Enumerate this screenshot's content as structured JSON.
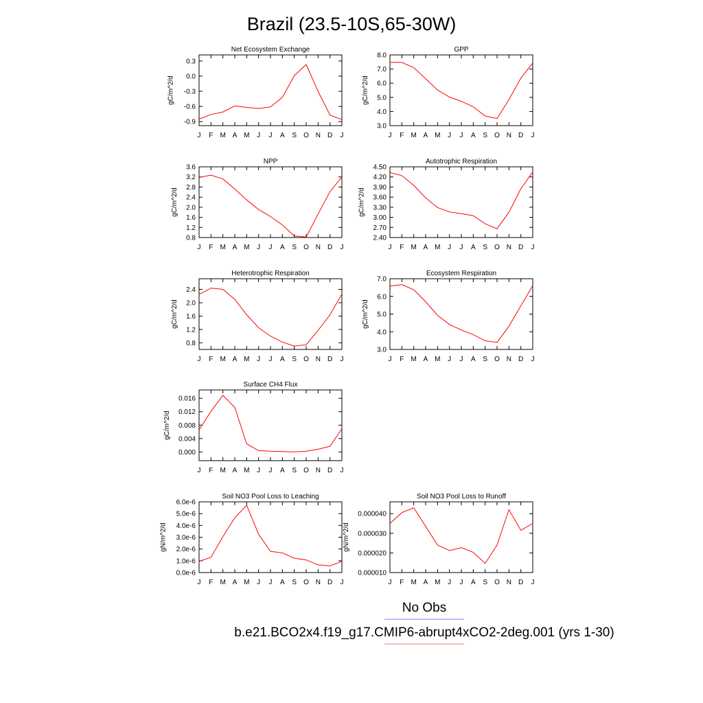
{
  "title": "Brazil (23.5-10S,65-30W)",
  "legend": {
    "entries": [
      {
        "label": "No Obs",
        "color": "#7b7bff"
      },
      {
        "label": "b.e21.BCO2x4.f19_g17.CMIP6-abrupt4xCO2-2deg.001 (yrs 1-30)",
        "color": "#ff6f6f"
      }
    ]
  },
  "colors": {
    "series": "#ff0000",
    "axis": "#000000"
  },
  "chart_data": [
    {
      "type": "line",
      "title": "Net Ecosystem Exchange",
      "ylabel": "gC/m^2/d",
      "categories": [
        "J",
        "F",
        "M",
        "A",
        "M",
        "J",
        "J",
        "A",
        "S",
        "O",
        "N",
        "D",
        "J"
      ],
      "values": [
        -0.85,
        -0.76,
        -0.71,
        -0.59,
        -0.62,
        -0.64,
        -0.61,
        -0.42,
        0.01,
        0.23,
        -0.3,
        -0.77,
        -0.86
      ],
      "ylim": [
        -0.98,
        0.42
      ],
      "yticks": [
        0.3,
        0.0,
        -0.3,
        -0.6,
        -0.9
      ],
      "ytick_labels": [
        "0.3",
        "0.0",
        "-0.3",
        "-0.6",
        "-0.9"
      ]
    },
    {
      "type": "line",
      "title": "GPP",
      "ylabel": "gC/m^2/d",
      "categories": [
        "J",
        "F",
        "M",
        "A",
        "M",
        "J",
        "J",
        "A",
        "S",
        "O",
        "N",
        "D",
        "J"
      ],
      "values": [
        7.48,
        7.47,
        7.1,
        6.32,
        5.52,
        5.02,
        4.72,
        4.33,
        3.68,
        3.5,
        4.84,
        6.36,
        7.43
      ],
      "ylim": [
        3.0,
        8.0
      ],
      "yticks": [
        8.0,
        7.0,
        6.0,
        5.0,
        4.0,
        3.0
      ],
      "ytick_labels": [
        "8.0",
        "7.0",
        "6.0",
        "5.0",
        "4.0",
        "3.0"
      ]
    },
    {
      "type": "line",
      "title": "NPP",
      "ylabel": "gC/m^2/d",
      "categories": [
        "J",
        "F",
        "M",
        "A",
        "M",
        "J",
        "J",
        "A",
        "S",
        "O",
        "N",
        "D",
        "J"
      ],
      "values": [
        3.18,
        3.27,
        3.12,
        2.72,
        2.29,
        1.91,
        1.63,
        1.3,
        0.86,
        0.82,
        1.73,
        2.62,
        3.2
      ],
      "ylim": [
        0.8,
        3.6
      ],
      "yticks": [
        3.6,
        3.2,
        2.8,
        2.4,
        2.0,
        1.6,
        1.2,
        0.8
      ],
      "ytick_labels": [
        "3.6",
        "3.2",
        "2.8",
        "2.4",
        "2.0",
        "1.6",
        "1.2",
        "0.8"
      ]
    },
    {
      "type": "line",
      "title": "Autotrophic Respiration",
      "ylabel": "gC/m^2/d",
      "categories": [
        "J",
        "F",
        "M",
        "A",
        "M",
        "J",
        "J",
        "A",
        "S",
        "O",
        "N",
        "D",
        "J"
      ],
      "values": [
        4.33,
        4.24,
        3.95,
        3.58,
        3.29,
        3.16,
        3.11,
        3.05,
        2.81,
        2.66,
        3.15,
        3.85,
        4.35
      ],
      "ylim": [
        2.4,
        4.5
      ],
      "yticks": [
        4.5,
        4.2,
        3.9,
        3.6,
        3.3,
        3.0,
        2.7,
        2.4
      ],
      "ytick_labels": [
        "4.50",
        "4.20",
        "3.90",
        "3.60",
        "3.30",
        "3.00",
        "2.70",
        "2.40"
      ]
    },
    {
      "type": "line",
      "title": "Heterotrophic Respiration",
      "ylabel": "gC/m^2/d",
      "categories": [
        "J",
        "F",
        "M",
        "A",
        "M",
        "J",
        "J",
        "A",
        "S",
        "O",
        "N",
        "D",
        "J"
      ],
      "values": [
        2.25,
        2.44,
        2.4,
        2.1,
        1.64,
        1.25,
        1.0,
        0.82,
        0.7,
        0.74,
        1.17,
        1.64,
        2.26
      ],
      "ylim": [
        0.6,
        2.72
      ],
      "yticks": [
        2.4,
        2.0,
        1.6,
        1.2,
        0.8
      ],
      "ytick_labels": [
        "2.4",
        "2.0",
        "1.6",
        "1.2",
        "0.8"
      ]
    },
    {
      "type": "line",
      "title": "Ecosystem Respiration",
      "ylabel": "gC/m^2/d",
      "categories": [
        "J",
        "F",
        "M",
        "A",
        "M",
        "J",
        "J",
        "A",
        "S",
        "O",
        "N",
        "D",
        "J"
      ],
      "values": [
        6.58,
        6.67,
        6.38,
        5.7,
        4.93,
        4.41,
        4.1,
        3.84,
        3.49,
        3.4,
        4.31,
        5.47,
        6.61
      ],
      "ylim": [
        3.0,
        7.0
      ],
      "yticks": [
        7.0,
        6.0,
        5.0,
        4.0,
        3.0
      ],
      "ytick_labels": [
        "7.0",
        "6.0",
        "5.0",
        "4.0",
        "3.0"
      ]
    },
    {
      "type": "line",
      "title": "Surface CH4 Flux",
      "ylabel": "gC/m^2/d",
      "categories": [
        "J",
        "F",
        "M",
        "A",
        "M",
        "J",
        "J",
        "A",
        "S",
        "O",
        "N",
        "D",
        "J"
      ],
      "values": [
        0.0066,
        0.0121,
        0.0169,
        0.0133,
        0.0024,
        0.0004,
        0.0002,
        0.0001,
        0.0,
        0.0002,
        0.0008,
        0.0017,
        0.0069
      ],
      "ylim": [
        -0.0026,
        0.0185
      ],
      "yticks": [
        0.016,
        0.012,
        0.008,
        0.004,
        0.0
      ],
      "ytick_labels": [
        "0.016",
        "0.012",
        "0.008",
        "0.004",
        "0.000"
      ]
    },
    {
      "type": "line",
      "title": "Soil NO3 Pool Loss to Leaching",
      "ylabel": "gN/m^2/d",
      "categories": [
        "J",
        "F",
        "M",
        "A",
        "M",
        "J",
        "J",
        "A",
        "S",
        "O",
        "N",
        "D",
        "J"
      ],
      "values": [
        9.5e-07,
        1.3e-06,
        3.05e-06,
        4.65e-06,
        5.7e-06,
        3.25e-06,
        1.8e-06,
        1.67e-06,
        1.22e-06,
        1.07e-06,
        6.5e-07,
        5.7e-07,
        9.5e-07
      ],
      "ylim": [
        0.0,
        6e-06
      ],
      "yticks": [
        6e-06,
        5e-06,
        4e-06,
        3e-06,
        2e-06,
        1e-06,
        0.0
      ],
      "ytick_labels": [
        "6.0e-6",
        "5.0e-6",
        "4.0e-6",
        "3.0e-6",
        "2.0e-6",
        "1.0e-6",
        "0.0e-6"
      ]
    },
    {
      "type": "line",
      "title": "Soil NO3 Pool Loss to Runoff",
      "ylabel": "gN/m^2/d",
      "categories": [
        "J",
        "F",
        "M",
        "A",
        "M",
        "J",
        "J",
        "A",
        "S",
        "O",
        "N",
        "D",
        "J"
      ],
      "values": [
        3.5e-05,
        4.05e-05,
        4.3e-05,
        3.35e-05,
        2.4e-05,
        2.12e-05,
        2.27e-05,
        2.03e-05,
        1.47e-05,
        2.4e-05,
        4.2e-05,
        3.15e-05,
        3.5e-05
      ],
      "ylim": [
        1e-05,
        4.6e-05
      ],
      "yticks": [
        4e-05,
        3e-05,
        2e-05,
        1e-05
      ],
      "ytick_labels": [
        "0.000040",
        "0.000030",
        "0.000020",
        "0.000010"
      ]
    }
  ]
}
